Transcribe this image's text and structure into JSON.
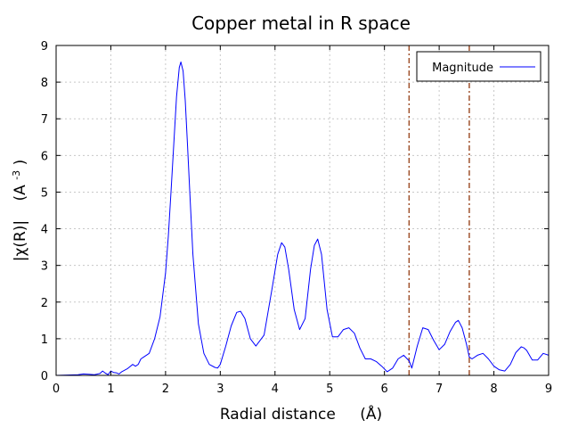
{
  "chart_data": {
    "type": "line",
    "title": "Copper metal in R space",
    "xlabel": "Radial distance",
    "xlabel_unit": "(Å)",
    "ylabel": "|χ(R)|",
    "ylabel_unit_base": "(A",
    "ylabel_unit_exp": "-3",
    "ylabel_unit_close": ")",
    "xlim": [
      0,
      9
    ],
    "ylim": [
      0,
      9
    ],
    "xticks": [
      "0",
      "1",
      "2",
      "3",
      "4",
      "5",
      "6",
      "7",
      "8",
      "9"
    ],
    "yticks": [
      "0",
      "1",
      "2",
      "3",
      "4",
      "5",
      "6",
      "7",
      "8",
      "9"
    ],
    "grid": true,
    "legend_position": "top-right",
    "series": [
      {
        "name": "Magnitude",
        "color": "#0000ff",
        "x": [
          0.0,
          0.2,
          0.4,
          0.5,
          0.6,
          0.7,
          0.8,
          0.85,
          0.9,
          0.95,
          1.0,
          1.05,
          1.1,
          1.15,
          1.2,
          1.3,
          1.4,
          1.45,
          1.5,
          1.55,
          1.6,
          1.7,
          1.8,
          1.9,
          2.0,
          2.05,
          2.1,
          2.15,
          2.2,
          2.25,
          2.28,
          2.32,
          2.36,
          2.4,
          2.45,
          2.5,
          2.6,
          2.7,
          2.8,
          2.9,
          2.95,
          3.0,
          3.1,
          3.2,
          3.3,
          3.37,
          3.45,
          3.55,
          3.65,
          3.8,
          3.95,
          4.05,
          4.12,
          4.18,
          4.25,
          4.35,
          4.45,
          4.55,
          4.65,
          4.72,
          4.78,
          4.85,
          4.95,
          5.05,
          5.15,
          5.25,
          5.35,
          5.45,
          5.55,
          5.65,
          5.75,
          5.85,
          5.95,
          6.05,
          6.15,
          6.25,
          6.35,
          6.45,
          6.5,
          6.6,
          6.7,
          6.8,
          6.9,
          7.0,
          7.1,
          7.2,
          7.3,
          7.35,
          7.42,
          7.5,
          7.55,
          7.6,
          7.7,
          7.8,
          7.9,
          8.0,
          8.1,
          8.2,
          8.3,
          8.4,
          8.5,
          8.55,
          8.6,
          8.7,
          8.8,
          8.9,
          9.0
        ],
        "y": [
          0.0,
          0.01,
          0.02,
          0.04,
          0.03,
          0.02,
          0.05,
          0.12,
          0.06,
          0.02,
          0.12,
          0.08,
          0.07,
          0.04,
          0.1,
          0.18,
          0.3,
          0.25,
          0.3,
          0.45,
          0.5,
          0.6,
          1.0,
          1.6,
          2.8,
          3.8,
          5.0,
          6.3,
          7.6,
          8.4,
          8.55,
          8.3,
          7.5,
          6.3,
          4.8,
          3.3,
          1.4,
          0.6,
          0.3,
          0.22,
          0.2,
          0.3,
          0.8,
          1.35,
          1.72,
          1.75,
          1.55,
          1.0,
          0.8,
          1.1,
          2.4,
          3.3,
          3.62,
          3.5,
          2.9,
          1.8,
          1.25,
          1.55,
          2.9,
          3.55,
          3.72,
          3.3,
          1.8,
          1.05,
          1.05,
          1.25,
          1.3,
          1.15,
          0.75,
          0.45,
          0.45,
          0.38,
          0.25,
          0.1,
          0.2,
          0.45,
          0.55,
          0.4,
          0.2,
          0.8,
          1.3,
          1.25,
          0.95,
          0.7,
          0.85,
          1.2,
          1.45,
          1.5,
          1.3,
          0.85,
          0.5,
          0.45,
          0.55,
          0.6,
          0.45,
          0.25,
          0.15,
          0.12,
          0.3,
          0.62,
          0.78,
          0.75,
          0.68,
          0.42,
          0.42,
          0.6,
          0.55
        ]
      }
    ],
    "vertical_markers": [
      {
        "x": 6.45,
        "color": "#a0522d"
      },
      {
        "x": 7.55,
        "color": "#a0522d"
      }
    ]
  }
}
